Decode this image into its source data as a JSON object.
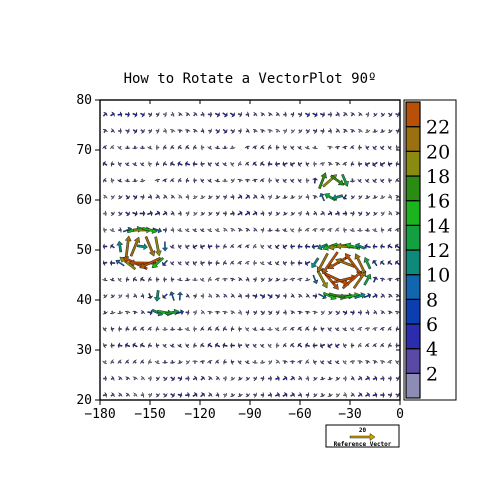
{
  "chart_data": {
    "type": "vector",
    "title": "How to Rotate a VectorPlot 90º",
    "xlim": [
      -180,
      0
    ],
    "ylim": [
      20,
      80
    ],
    "x_ticks": [
      -180,
      -150,
      -120,
      -90,
      -60,
      -30,
      0
    ],
    "x_tick_labels": [
      "−180",
      "−150",
      "−120",
      "−90",
      "−60",
      "−30",
      "0"
    ],
    "y_ticks": [
      20,
      30,
      40,
      50,
      60,
      70,
      80
    ],
    "y_tick_labels": [
      "20",
      "30",
      "40",
      "50",
      "60",
      "70",
      "80"
    ],
    "colorbar": {
      "labels": [
        "2",
        "4",
        "6",
        "8",
        "10",
        "12",
        "14",
        "16",
        "18",
        "20",
        "22"
      ],
      "colors": [
        "#8c8cb4",
        "#5a4aa6",
        "#2c2cae",
        "#0b3eb0",
        "#1166b0",
        "#0e8a7a",
        "#12a040",
        "#1cb41c",
        "#2a8c12",
        "#8a8a10",
        "#9a7010",
        "#b85008"
      ]
    },
    "reference_vector": {
      "value": "20",
      "label": "Reference Vector",
      "color": "#c8a000"
    },
    "field": {
      "grid_x": [
        -177,
        0,
        4.5
      ],
      "grid_y": [
        21,
        79,
        3.3
      ],
      "vortices": [
        {
          "x": -155,
          "y": 50,
          "strength": 22,
          "radius": 10,
          "direction": -1
        },
        {
          "x": -35,
          "y": 46,
          "strength": 22,
          "radius": 12,
          "direction": 1
        },
        {
          "x": -40,
          "y": 63,
          "strength": 16,
          "radius": 7,
          "direction": -1
        },
        {
          "x": -140,
          "y": 40,
          "strength": 12,
          "radius": 8,
          "direction": 1
        }
      ],
      "background_flow": [
        3,
        0.5
      ]
    }
  }
}
